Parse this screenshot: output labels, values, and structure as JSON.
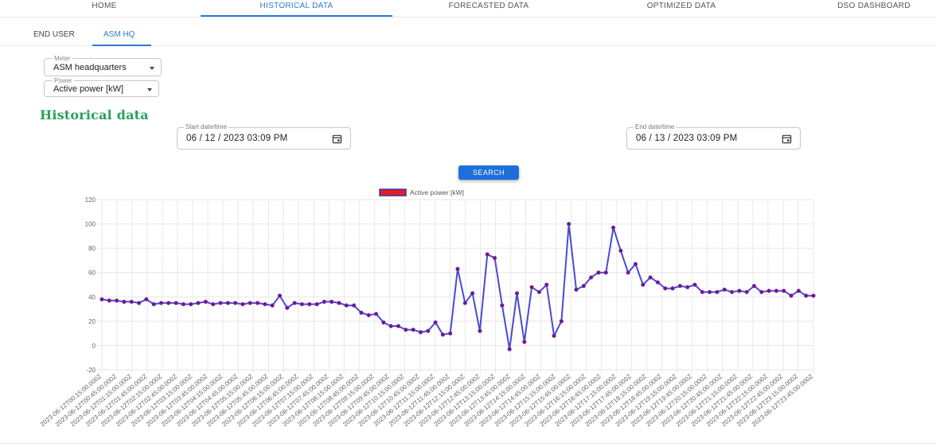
{
  "nav": {
    "tabs": [
      {
        "label": "HOME"
      },
      {
        "label": "HISTORICAL DATA",
        "active": true
      },
      {
        "label": "FORECASTED DATA"
      },
      {
        "label": "OPTIMIZED DATA"
      },
      {
        "label": "DSO DASHBOARD"
      }
    ]
  },
  "subnav": {
    "tabs": [
      {
        "label": "END USER"
      },
      {
        "label": "ASM HQ",
        "active": true
      }
    ]
  },
  "filters": {
    "meter": {
      "label": "Meter",
      "value": "ASM headquarters"
    },
    "power": {
      "label": "Power",
      "value": "Active power [kW]"
    }
  },
  "page_title": "Historical data",
  "date_range": {
    "start": {
      "label": "Start date/time",
      "value": "06 / 12 / 2023 03:09 PM"
    },
    "end": {
      "label": "End date/time",
      "value": "06 / 13 / 2023 03:09 PM"
    }
  },
  "search_label": "SEARCH",
  "colors": {
    "accent": "#2e7bd6",
    "title_green": "#27a05a",
    "line": "#4a4ad4",
    "point": "#6a1a8a",
    "legend_fill": "#e0201c"
  },
  "chart_data": {
    "type": "line",
    "legend": [
      "Active power [kW]"
    ],
    "legend_position": "top-center",
    "grid": true,
    "ylim": [
      -20,
      120
    ],
    "y_ticks": [
      -20,
      0,
      20,
      40,
      60,
      80,
      100,
      120
    ],
    "x_tick_labels": [
      "2023-06-12T00:15:00.000Z",
      "2023-06-12T00:45:00.000Z",
      "2023-06-12T01:15:00.000Z",
      "2023-06-12T01:45:00.000Z",
      "2023-06-12T02:15:00.000Z",
      "2023-06-12T02:45:00.000Z",
      "2023-06-12T03:15:00.000Z",
      "2023-06-12T03:45:00.000Z",
      "2023-06-12T04:15:00.000Z",
      "2023-06-12T04:45:00.000Z",
      "2023-06-12T05:15:00.000Z",
      "2023-06-12T05:45:00.000Z",
      "2023-06-12T06:15:00.000Z",
      "2023-06-12T06:45:00.000Z",
      "2023-06-12T07:15:00.000Z",
      "2023-06-12T07:45:00.000Z",
      "2023-06-12T08:15:00.000Z",
      "2023-06-12T08:45:00.000Z",
      "2023-06-12T09:15:00.000Z",
      "2023-06-12T09:45:00.000Z",
      "2023-06-12T10:15:00.000Z",
      "2023-06-12T10:45:00.000Z",
      "2023-06-12T11:15:00.000Z",
      "2023-06-12T11:45:00.000Z",
      "2023-06-12T12:15:00.000Z",
      "2023-06-12T12:45:00.000Z",
      "2023-06-12T13:15:00.000Z",
      "2023-06-12T13:45:00.000Z",
      "2023-06-12T14:15:00.000Z",
      "2023-06-12T14:45:00.000Z",
      "2023-06-12T15:15:00.000Z",
      "2023-06-12T15:45:00.000Z",
      "2023-06-12T16:15:00.000Z",
      "2023-06-12T16:45:00.000Z",
      "2023-06-12T17:15:00.000Z",
      "2023-06-12T17:45:00.000Z",
      "2023-06-12T18:15:00.000Z",
      "2023-06-12T18:45:00.000Z",
      "2023-06-12T19:15:00.000Z",
      "2023-06-12T19:45:00.000Z",
      "2023-06-12T20:15:00.000Z",
      "2023-06-12T20:45:00.000Z",
      "2023-06-12T21:15:00.000Z",
      "2023-06-12T21:45:00.000Z",
      "2023-06-12T22:15:00.000Z",
      "2023-06-12T22:45:00.000Z",
      "2023-06-12T23:15:00.000Z",
      "2023-06-12T23:45:00.000Z"
    ],
    "series": [
      {
        "name": "Active power [kW]",
        "values": [
          38,
          37,
          37,
          36,
          36,
          35,
          38,
          34,
          35,
          35,
          35,
          34,
          34,
          35,
          36,
          34,
          35,
          35,
          35,
          34,
          35,
          35,
          34,
          33,
          41,
          31,
          35,
          34,
          34,
          34,
          36,
          36,
          35,
          33,
          33,
          27,
          25,
          26,
          19,
          16,
          16,
          13,
          13,
          11,
          12,
          19,
          9,
          10,
          63,
          35,
          43,
          12,
          75,
          72,
          33,
          -3,
          43,
          3,
          48,
          44,
          50,
          8,
          20,
          100,
          46,
          49,
          56,
          60,
          60,
          97,
          78,
          60,
          67,
          50,
          56,
          52,
          47,
          47,
          49,
          48,
          50,
          44,
          44,
          44,
          46,
          44,
          45,
          44,
          49,
          44,
          45,
          45,
          45,
          41,
          45,
          41,
          41
        ]
      }
    ]
  }
}
